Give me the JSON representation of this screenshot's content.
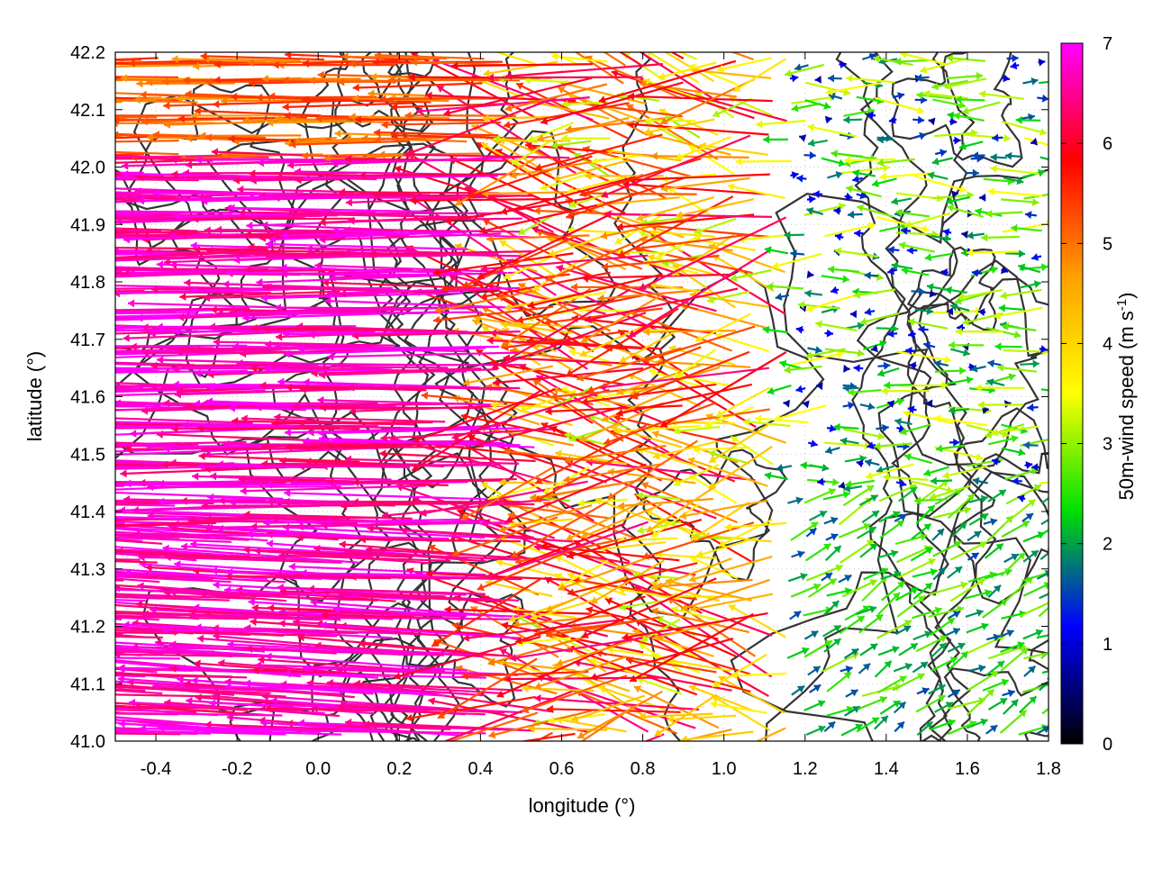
{
  "chart_data": {
    "type": "vector-field",
    "xlabel": "longitude (°)",
    "ylabel": "latitude (°)",
    "colorbar_label": "50m-wind speed (m s-1)",
    "colorbar_label_main": "50m-wind speed (m s",
    "colorbar_label_sup": "-1",
    "colorbar_label_end": ")",
    "xlim": [
      -0.5,
      1.8
    ],
    "ylim": [
      41.0,
      42.2
    ],
    "xticks": [
      "-0.4",
      "-0.2",
      "0.0",
      "0.2",
      "0.4",
      "0.6",
      "0.8",
      "1.0",
      "1.2",
      "1.4",
      "1.6",
      "1.8"
    ],
    "xtick_values": [
      -0.4,
      -0.2,
      0.0,
      0.2,
      0.4,
      0.6,
      0.8,
      1.0,
      1.2,
      1.4,
      1.6,
      1.8
    ],
    "yticks": [
      "41.0",
      "41.1",
      "41.2",
      "41.3",
      "41.4",
      "41.5",
      "41.6",
      "41.7",
      "41.8",
      "41.9",
      "42.0",
      "42.1",
      "42.2"
    ],
    "ytick_values": [
      41.0,
      41.1,
      41.2,
      41.3,
      41.4,
      41.5,
      41.6,
      41.7,
      41.8,
      41.9,
      42.0,
      42.1,
      42.2
    ],
    "colorbar_range": [
      0,
      7
    ],
    "colorbar_ticks": [
      "0",
      "1",
      "2",
      "3",
      "4",
      "5",
      "6",
      "7"
    ],
    "colormap": [
      "#000000",
      "#0000ff",
      "#00e000",
      "#ffff00",
      "#ffa000",
      "#ff0000",
      "#ff00ff"
    ],
    "grid": "dotted",
    "contour_color": "#333333",
    "regions": {
      "west_strong_flow": {
        "speed": 6.8,
        "direction": "easterly (toward west)"
      },
      "central_mixed_flow": {
        "speed": 4.5,
        "direction": "variable"
      },
      "east_weak_flow": {
        "speed": 2.0,
        "direction": "westerly (toward east)"
      },
      "southeast_flow": {
        "speed": 2.5,
        "direction": "south-westerly"
      }
    }
  }
}
